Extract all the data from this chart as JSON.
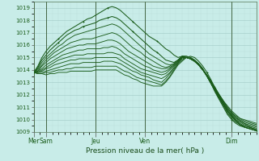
{
  "xlabel": "Pression niveau de la mer( hPa )",
  "background_color": "#c8ece8",
  "grid_color_major": "#a8d0cc",
  "grid_color_minor": "#bcdeda",
  "line_color": "#1a5c1a",
  "ylim": [
    1009,
    1019.5
  ],
  "yticks": [
    1009,
    1010,
    1011,
    1012,
    1013,
    1014,
    1015,
    1016,
    1017,
    1018,
    1019
  ],
  "x_day_labels": [
    "Mer",
    "Sam",
    "Jeu",
    "Ven",
    "Dim"
  ],
  "x_day_positions": [
    0,
    12,
    60,
    108,
    192
  ],
  "x_minor_positions": [
    6,
    18,
    30,
    42,
    54,
    66,
    78,
    90,
    102,
    114,
    126,
    138,
    150,
    162,
    174,
    186,
    198,
    210
  ],
  "xlim": [
    0,
    216
  ],
  "n_points": 55,
  "x_end": 216,
  "series": [
    [
      1013.8,
      1014.3,
      1015.0,
      1015.5,
      1015.9,
      1016.2,
      1016.5,
      1016.8,
      1017.1,
      1017.3,
      1017.5,
      1017.7,
      1017.9,
      1018.1,
      1018.2,
      1018.4,
      1018.6,
      1018.8,
      1019.0,
      1019.1,
      1019.0,
      1018.8,
      1018.5,
      1018.2,
      1017.9,
      1017.6,
      1017.3,
      1017.0,
      1016.7,
      1016.5,
      1016.3,
      1016.0,
      1015.7,
      1015.5,
      1015.2,
      1015.0,
      1015.1,
      1015.0,
      1015.1,
      1015.0,
      1014.7,
      1014.3,
      1013.8,
      1013.2,
      1012.5,
      1011.9,
      1011.3,
      1010.7,
      1010.3,
      1009.9,
      1009.6,
      1009.4,
      1009.3,
      1009.2,
      1009.1
    ],
    [
      1013.8,
      1014.2,
      1014.8,
      1015.2,
      1015.6,
      1015.9,
      1016.2,
      1016.5,
      1016.8,
      1017.0,
      1017.2,
      1017.3,
      1017.5,
      1017.6,
      1017.7,
      1017.8,
      1018.0,
      1018.1,
      1018.2,
      1018.3,
      1018.2,
      1018.0,
      1017.7,
      1017.4,
      1017.1,
      1016.8,
      1016.5,
      1016.2,
      1015.9,
      1015.6,
      1015.4,
      1015.1,
      1014.8,
      1014.7,
      1014.6,
      1014.8,
      1015.1,
      1015.1,
      1015.0,
      1014.8,
      1014.5,
      1014.1,
      1013.5,
      1012.9,
      1012.2,
      1011.6,
      1011.0,
      1010.4,
      1010.0,
      1009.7,
      1009.5,
      1009.4,
      1009.3,
      1009.2,
      1009.1
    ],
    [
      1013.8,
      1014.1,
      1014.6,
      1015.0,
      1015.3,
      1015.6,
      1015.9,
      1016.1,
      1016.4,
      1016.6,
      1016.8,
      1016.9,
      1017.0,
      1017.1,
      1017.2,
      1017.3,
      1017.4,
      1017.5,
      1017.6,
      1017.7,
      1017.6,
      1017.4,
      1017.1,
      1016.8,
      1016.5,
      1016.2,
      1015.9,
      1015.6,
      1015.3,
      1015.1,
      1014.9,
      1014.7,
      1014.5,
      1014.4,
      1014.5,
      1014.8,
      1015.1,
      1015.1,
      1015.0,
      1014.8,
      1014.5,
      1014.1,
      1013.5,
      1012.9,
      1012.3,
      1011.7,
      1011.1,
      1010.5,
      1010.1,
      1009.8,
      1009.6,
      1009.4,
      1009.3,
      1009.2,
      1009.1
    ],
    [
      1013.8,
      1014.0,
      1014.4,
      1014.8,
      1015.1,
      1015.4,
      1015.6,
      1015.8,
      1016.0,
      1016.2,
      1016.3,
      1016.4,
      1016.5,
      1016.5,
      1016.5,
      1016.6,
      1016.7,
      1016.8,
      1016.9,
      1017.0,
      1016.9,
      1016.7,
      1016.4,
      1016.1,
      1015.8,
      1015.6,
      1015.4,
      1015.1,
      1014.9,
      1014.7,
      1014.5,
      1014.3,
      1014.2,
      1014.3,
      1014.5,
      1014.8,
      1015.1,
      1015.0,
      1014.9,
      1014.7,
      1014.4,
      1014.0,
      1013.5,
      1012.9,
      1012.3,
      1011.7,
      1011.2,
      1010.6,
      1010.2,
      1009.9,
      1009.6,
      1009.5,
      1009.4,
      1009.3,
      1009.2
    ],
    [
      1013.8,
      1013.9,
      1014.3,
      1014.6,
      1014.9,
      1015.1,
      1015.3,
      1015.5,
      1015.7,
      1015.8,
      1015.9,
      1016.0,
      1016.0,
      1016.1,
      1016.1,
      1016.1,
      1016.2,
      1016.3,
      1016.4,
      1016.4,
      1016.3,
      1016.1,
      1015.8,
      1015.5,
      1015.3,
      1015.1,
      1014.9,
      1014.7,
      1014.5,
      1014.3,
      1014.2,
      1014.1,
      1014.1,
      1014.2,
      1014.4,
      1014.7,
      1015.0,
      1015.0,
      1014.9,
      1014.7,
      1014.4,
      1014.0,
      1013.5,
      1012.9,
      1012.3,
      1011.8,
      1011.2,
      1010.7,
      1010.3,
      1010.0,
      1009.7,
      1009.5,
      1009.4,
      1009.3,
      1009.2
    ],
    [
      1013.8,
      1013.9,
      1014.1,
      1014.4,
      1014.6,
      1014.8,
      1015.0,
      1015.2,
      1015.3,
      1015.4,
      1015.5,
      1015.6,
      1015.6,
      1015.7,
      1015.7,
      1015.7,
      1015.7,
      1015.8,
      1015.8,
      1015.9,
      1015.8,
      1015.6,
      1015.3,
      1015.1,
      1014.9,
      1014.7,
      1014.5,
      1014.3,
      1014.2,
      1014.0,
      1013.9,
      1013.8,
      1013.9,
      1014.1,
      1014.4,
      1014.7,
      1015.0,
      1015.0,
      1014.9,
      1014.7,
      1014.4,
      1014.0,
      1013.5,
      1012.9,
      1012.4,
      1011.8,
      1011.3,
      1010.7,
      1010.3,
      1010.0,
      1009.8,
      1009.6,
      1009.5,
      1009.3,
      1009.2
    ],
    [
      1013.8,
      1013.8,
      1014.0,
      1014.2,
      1014.4,
      1014.6,
      1014.8,
      1014.9,
      1015.0,
      1015.1,
      1015.2,
      1015.2,
      1015.2,
      1015.3,
      1015.3,
      1015.3,
      1015.3,
      1015.3,
      1015.4,
      1015.4,
      1015.3,
      1015.2,
      1014.9,
      1014.7,
      1014.5,
      1014.3,
      1014.1,
      1014.0,
      1013.9,
      1013.8,
      1013.7,
      1013.6,
      1013.7,
      1014.0,
      1014.3,
      1014.6,
      1015.0,
      1015.0,
      1014.9,
      1014.7,
      1014.4,
      1014.0,
      1013.5,
      1013.0,
      1012.4,
      1011.9,
      1011.3,
      1010.8,
      1010.4,
      1010.1,
      1009.9,
      1009.7,
      1009.5,
      1009.4,
      1009.3
    ],
    [
      1013.8,
      1013.8,
      1013.9,
      1014.1,
      1014.2,
      1014.4,
      1014.5,
      1014.6,
      1014.7,
      1014.8,
      1014.8,
      1014.9,
      1014.9,
      1014.9,
      1014.9,
      1015.0,
      1015.0,
      1015.0,
      1015.0,
      1015.0,
      1015.0,
      1014.8,
      1014.6,
      1014.4,
      1014.2,
      1014.0,
      1013.8,
      1013.7,
      1013.6,
      1013.5,
      1013.4,
      1013.3,
      1013.5,
      1013.8,
      1014.2,
      1014.6,
      1015.0,
      1015.0,
      1014.9,
      1014.7,
      1014.4,
      1014.0,
      1013.6,
      1013.0,
      1012.5,
      1011.9,
      1011.4,
      1010.9,
      1010.5,
      1010.2,
      1009.9,
      1009.7,
      1009.6,
      1009.5,
      1009.4
    ],
    [
      1013.8,
      1013.8,
      1013.8,
      1013.9,
      1014.0,
      1014.1,
      1014.2,
      1014.3,
      1014.4,
      1014.5,
      1014.5,
      1014.5,
      1014.6,
      1014.6,
      1014.6,
      1014.6,
      1014.6,
      1014.7,
      1014.7,
      1014.7,
      1014.6,
      1014.5,
      1014.3,
      1014.1,
      1013.9,
      1013.8,
      1013.6,
      1013.5,
      1013.4,
      1013.2,
      1013.1,
      1013.0,
      1013.3,
      1013.7,
      1014.1,
      1014.5,
      1014.9,
      1015.0,
      1014.9,
      1014.7,
      1014.4,
      1014.0,
      1013.6,
      1013.0,
      1012.5,
      1012.0,
      1011.5,
      1010.9,
      1010.5,
      1010.2,
      1010.0,
      1009.8,
      1009.7,
      1009.6,
      1009.5
    ],
    [
      1013.8,
      1013.7,
      1013.7,
      1013.8,
      1013.8,
      1013.9,
      1014.0,
      1014.0,
      1014.1,
      1014.1,
      1014.2,
      1014.2,
      1014.2,
      1014.2,
      1014.2,
      1014.3,
      1014.3,
      1014.3,
      1014.3,
      1014.3,
      1014.3,
      1014.1,
      1013.9,
      1013.8,
      1013.6,
      1013.4,
      1013.3,
      1013.2,
      1013.1,
      1013.0,
      1012.9,
      1012.8,
      1013.1,
      1013.5,
      1014.0,
      1014.5,
      1014.8,
      1015.0,
      1014.9,
      1014.7,
      1014.4,
      1014.0,
      1013.6,
      1013.1,
      1012.5,
      1012.0,
      1011.5,
      1011.0,
      1010.6,
      1010.3,
      1010.1,
      1009.9,
      1009.8,
      1009.7,
      1009.6
    ],
    [
      1013.8,
      1013.7,
      1013.7,
      1013.6,
      1013.7,
      1013.7,
      1013.8,
      1013.8,
      1013.8,
      1013.9,
      1013.9,
      1013.9,
      1013.9,
      1013.9,
      1013.9,
      1014.0,
      1014.0,
      1014.0,
      1014.0,
      1014.0,
      1014.0,
      1013.8,
      1013.6,
      1013.5,
      1013.3,
      1013.2,
      1013.0,
      1012.9,
      1012.8,
      1012.7,
      1012.7,
      1012.7,
      1013.0,
      1013.4,
      1013.9,
      1014.4,
      1014.7,
      1015.0,
      1014.9,
      1014.7,
      1014.4,
      1014.0,
      1013.6,
      1013.1,
      1012.6,
      1012.0,
      1011.5,
      1011.1,
      1010.7,
      1010.4,
      1010.1,
      1010.0,
      1009.9,
      1009.8,
      1009.7
    ]
  ]
}
